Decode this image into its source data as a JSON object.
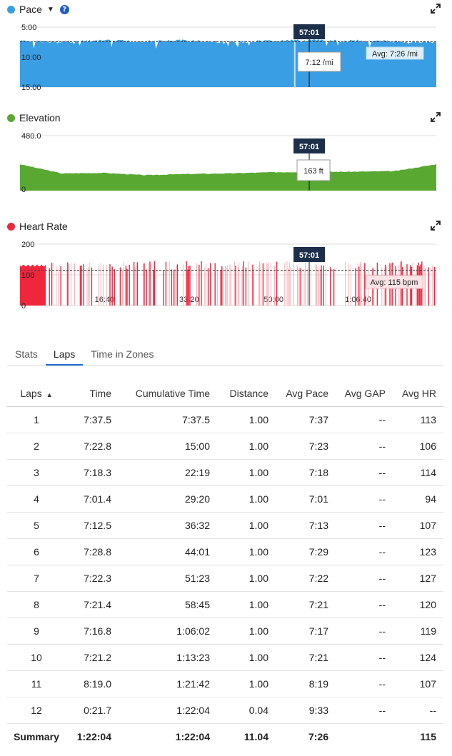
{
  "charts": [
    {
      "title": "Pace",
      "color": "#3a9ee4",
      "has_dropdown": true,
      "has_help": true,
      "y_ticks": [
        "5:00",
        "10:00",
        "15:00"
      ],
      "x_ticks": [
        "16:40",
        "33:20",
        "50:00",
        "1:06:40"
      ],
      "cursor_time": "57:01",
      "tooltip": "7:12 /mi",
      "avg_label": "Avg: 7:26 /mi"
    },
    {
      "title": "Elevation",
      "color": "#58a832",
      "y_ticks": [
        "480.0",
        "0"
      ],
      "x_ticks": [
        "16:40",
        "33:20",
        "50:00",
        "1:06:40"
      ],
      "cursor_time": "57:01",
      "tooltip": "163 ft"
    },
    {
      "title": "Heart Rate",
      "color": "#f0263d",
      "y_ticks": [
        "200",
        "100",
        "0"
      ],
      "x_ticks": [
        "16:40",
        "33:20",
        "50:00",
        "1:06:40"
      ],
      "cursor_time": "57:01",
      "avg_label": "Avg: 115 bpm"
    }
  ],
  "chart_data": [
    {
      "type": "area",
      "title": "Pace",
      "y_unit": "min/mi",
      "y_inverted": true,
      "ylim": [
        "5:00",
        "15:00"
      ],
      "x_unit": "elapsed time",
      "x": [
        "0:00",
        "8:20",
        "16:40",
        "25:00",
        "33:20",
        "41:40",
        "50:00",
        "58:20",
        "1:06:40",
        "1:15:00",
        "1:22:04"
      ],
      "values": [
        "7:20",
        "7:25",
        "7:18",
        "7:22",
        "7:15",
        "7:30",
        "7:22",
        "7:12",
        "7:18",
        "7:25",
        "7:30"
      ],
      "average": "7:26",
      "cursor": {
        "x": "57:01",
        "y": "7:12"
      }
    },
    {
      "type": "area",
      "title": "Elevation",
      "y_unit": "ft",
      "ylim": [
        0,
        480
      ],
      "x_unit": "elapsed time",
      "x": [
        "0:00",
        "8:20",
        "16:40",
        "25:00",
        "33:20",
        "41:40",
        "50:00",
        "58:20",
        "1:06:40",
        "1:15:00",
        "1:22:04"
      ],
      "values": [
        230,
        150,
        155,
        135,
        145,
        150,
        160,
        163,
        165,
        170,
        230
      ],
      "cursor": {
        "x": "57:01",
        "y": 163
      }
    },
    {
      "type": "area",
      "title": "Heart Rate",
      "y_unit": "bpm",
      "ylim": [
        0,
        200
      ],
      "x_unit": "elapsed time",
      "average": 115,
      "cursor": {
        "x": "57:01"
      }
    }
  ],
  "tabs": [
    {
      "label": "Stats",
      "active": false
    },
    {
      "label": "Laps",
      "active": true
    },
    {
      "label": "Time in Zones",
      "active": false
    }
  ],
  "laps": {
    "columns": [
      "Laps",
      "Time",
      "Cumulative Time",
      "Distance",
      "Avg Pace",
      "Avg GAP",
      "Avg HR"
    ],
    "rows": [
      [
        "1",
        "7:37.5",
        "7:37.5",
        "1.00",
        "7:37",
        "--",
        "113"
      ],
      [
        "2",
        "7:22.8",
        "15:00",
        "1.00",
        "7:23",
        "--",
        "106"
      ],
      [
        "3",
        "7:18.3",
        "22:19",
        "1.00",
        "7:18",
        "--",
        "114"
      ],
      [
        "4",
        "7:01.4",
        "29:20",
        "1.00",
        "7:01",
        "--",
        "94"
      ],
      [
        "5",
        "7:12.5",
        "36:32",
        "1.00",
        "7:13",
        "--",
        "107"
      ],
      [
        "6",
        "7:28.8",
        "44:01",
        "1.00",
        "7:29",
        "--",
        "123"
      ],
      [
        "7",
        "7:22.3",
        "51:23",
        "1.00",
        "7:22",
        "--",
        "127"
      ],
      [
        "8",
        "7:21.4",
        "58:45",
        "1.00",
        "7:21",
        "--",
        "120"
      ],
      [
        "9",
        "7:16.8",
        "1:06:02",
        "1.00",
        "7:17",
        "--",
        "119"
      ],
      [
        "10",
        "7:21.2",
        "1:13:23",
        "1.00",
        "7:21",
        "--",
        "124"
      ],
      [
        "11",
        "8:19.0",
        "1:21:42",
        "1.00",
        "8:19",
        "--",
        "107"
      ],
      [
        "12",
        "0:21.7",
        "1:22:04",
        "0.04",
        "9:33",
        "--",
        "--"
      ]
    ],
    "summary": [
      "Summary",
      "1:22:04",
      "1:22:04",
      "11.04",
      "7:26",
      "",
      "115"
    ]
  }
}
